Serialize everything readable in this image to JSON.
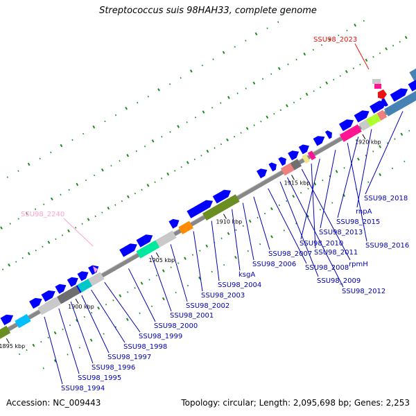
{
  "title": "Streptococcus suis 98HAH33, complete genome",
  "accession": "Accession: NC_009443",
  "summary": "Topology: circular; Length: 2,095,698 bp; Genes: 2,253",
  "colors": {
    "gene": "#0000ff",
    "backbone": "#888888",
    "highlight_red": "#ee1111",
    "highlight_pink": "#ff9fcf",
    "label": "#0000b0"
  },
  "position_ticks": [
    "1895 kbp",
    "1900 kbp",
    "1905 kbp",
    "1910 kbp",
    "1915 kbp",
    "1920 kbp",
    "1925 kbp"
  ],
  "highlighted_genes": [
    {
      "label": "SSU98_2023",
      "color": "#ee1111"
    },
    {
      "label": "SSU98_2240",
      "color": "#ff9fcf"
    }
  ],
  "gene_labels": [
    "SSU98_1994",
    "SSU98_1995",
    "SSU98_1996",
    "SSU98_1997",
    "SSU98_1998",
    "SSU98_1999",
    "SSU98_2000",
    "SSU98_2001",
    "SSU98_2002",
    "SSU98_2003",
    "SSU98_2004",
    "ksgA",
    "SSU98_2006",
    "SSU98_2007",
    "SSU98_2008",
    "SSU98_2009",
    "SSU98_2012",
    "rpmH",
    "SSU98_2011",
    "SSU98_2010",
    "SSU98_2013",
    "SSU98_2016",
    "SSU98_2015",
    "rnpA",
    "SSU98_2018"
  ]
}
